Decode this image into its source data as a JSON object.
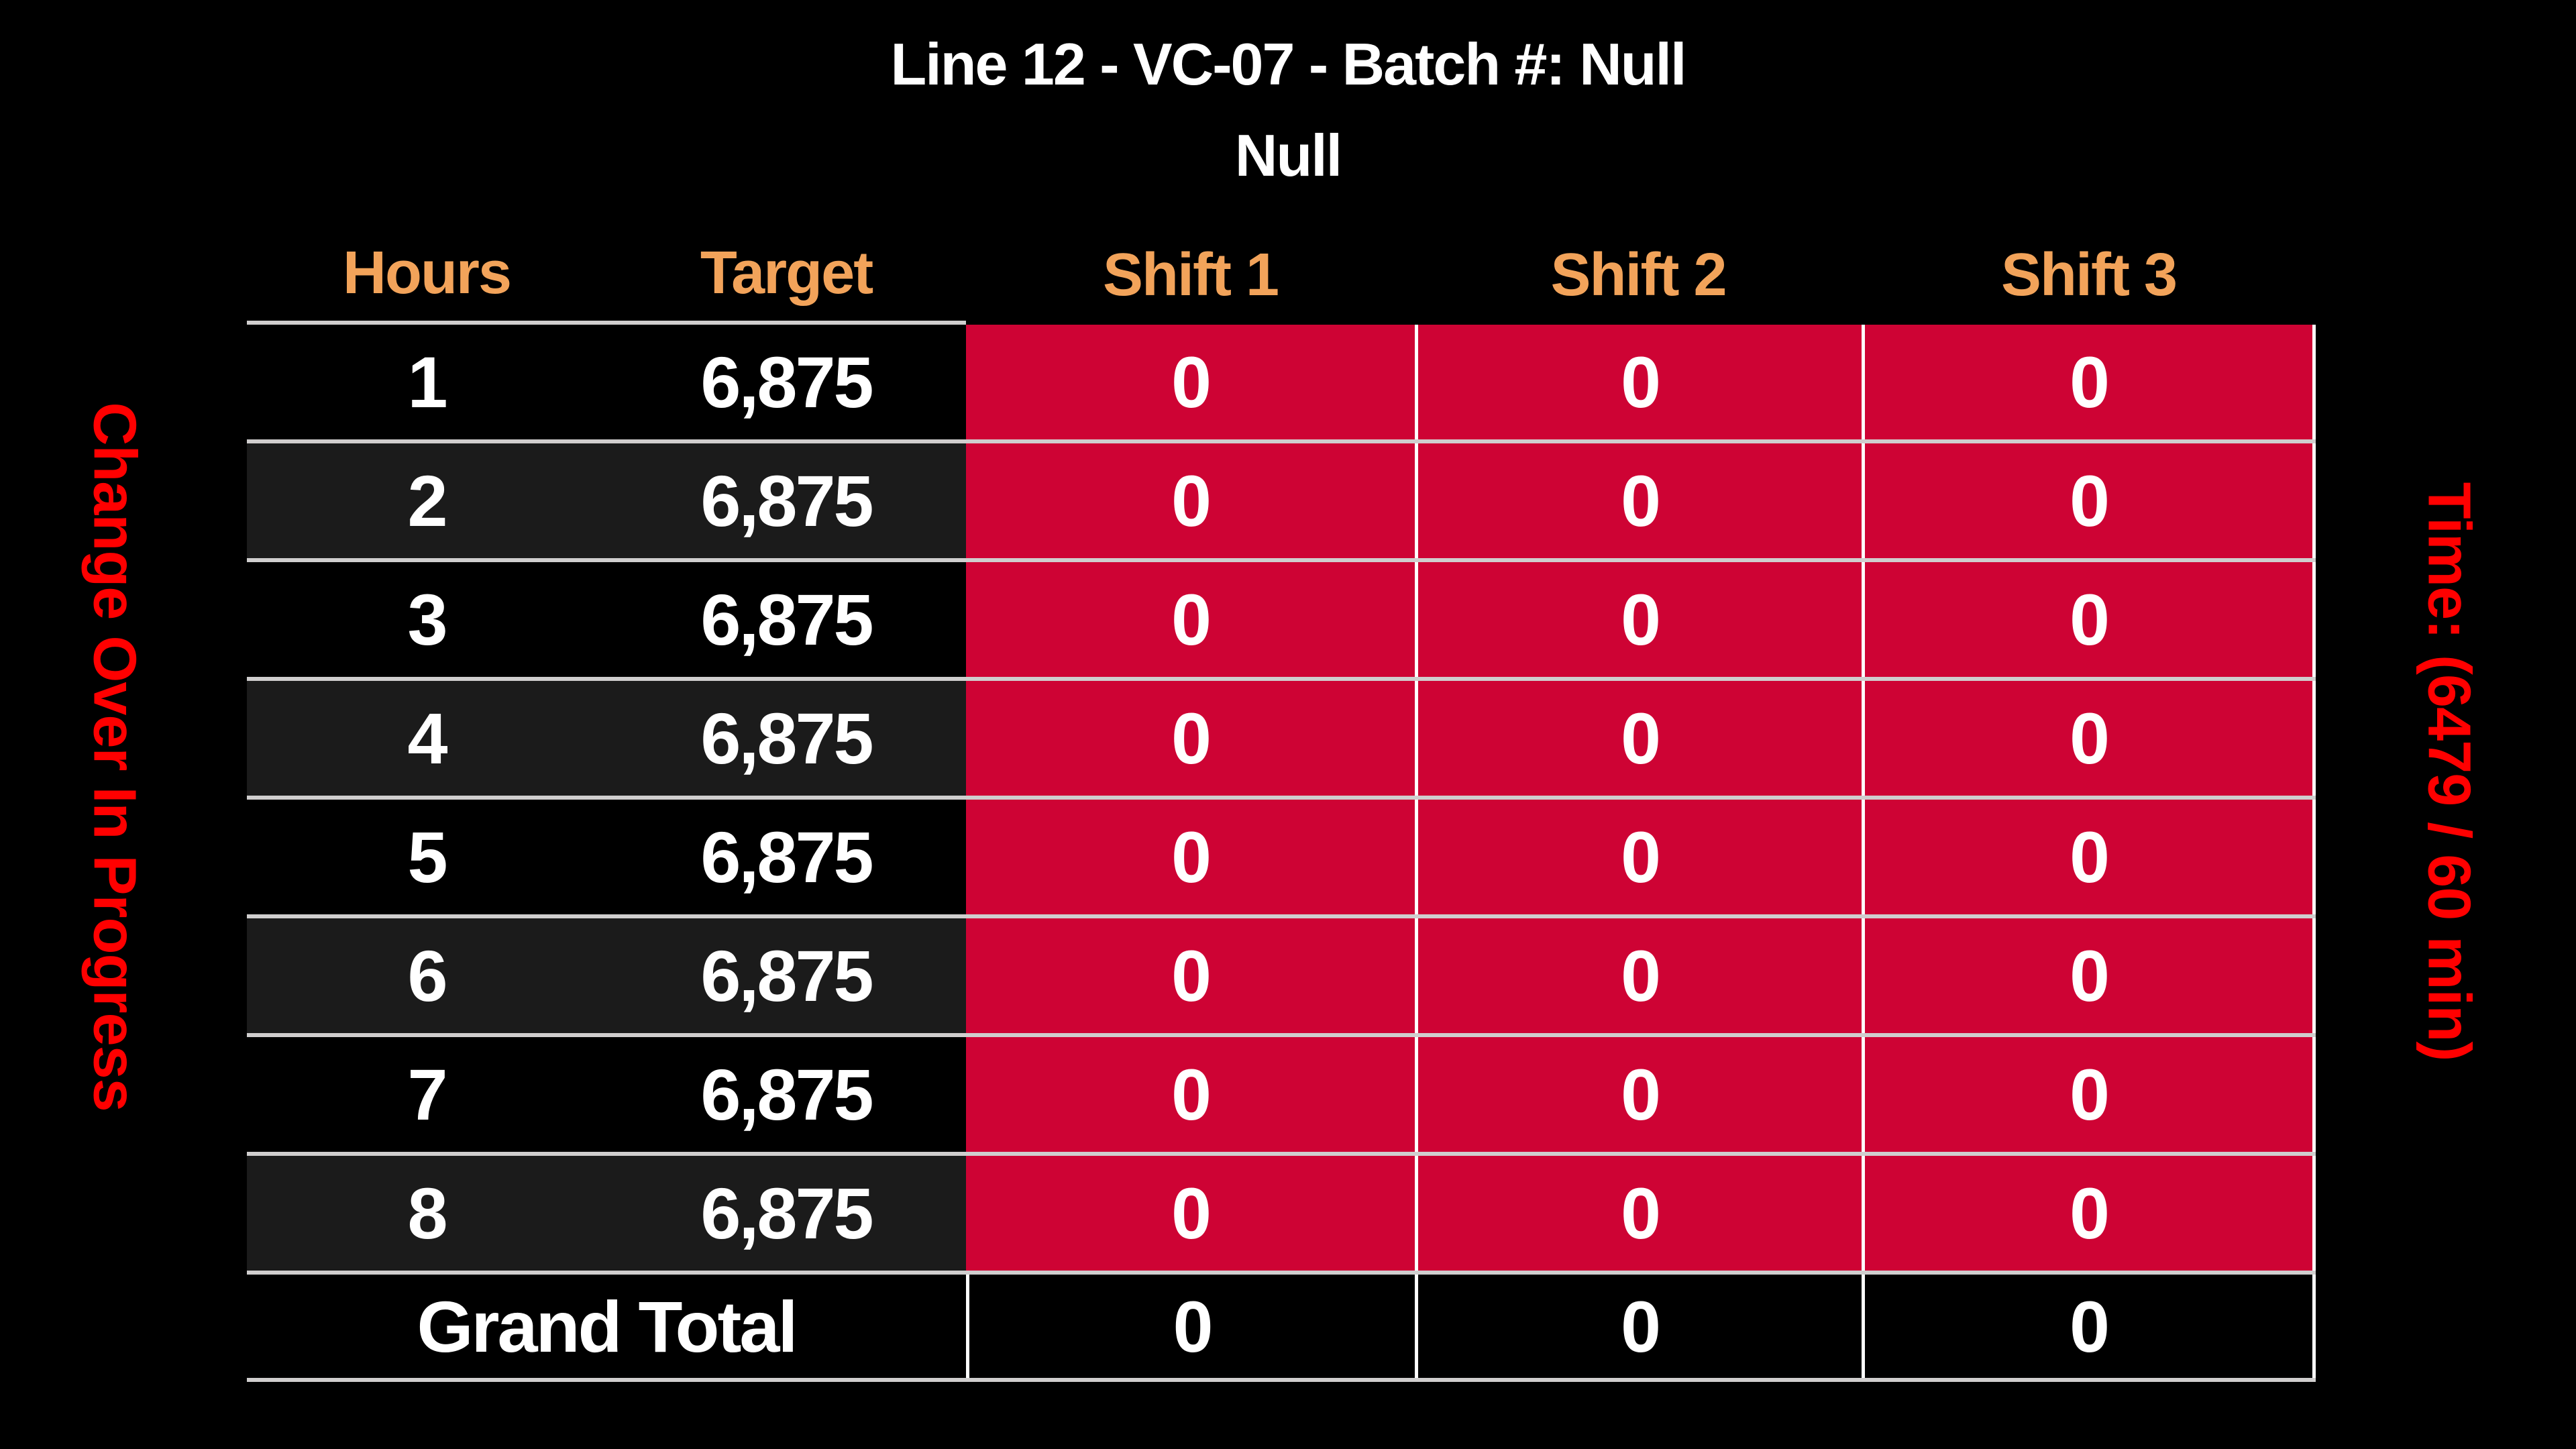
{
  "title": {
    "line1": "Line 12 - VC-07 - Batch #: Null",
    "line2": "Null"
  },
  "side_labels": {
    "left": "Change Over In Progress",
    "right": "Time: (6479 / 60 min)"
  },
  "table": {
    "headers": [
      "Hours",
      "Target",
      "Shift 1",
      "Shift 2",
      "Shift 3"
    ],
    "rows": [
      {
        "hours": "1",
        "target": "6,875",
        "shift1": "0",
        "shift2": "0",
        "shift3": "0"
      },
      {
        "hours": "2",
        "target": "6,875",
        "shift1": "0",
        "shift2": "0",
        "shift3": "0"
      },
      {
        "hours": "3",
        "target": "6,875",
        "shift1": "0",
        "shift2": "0",
        "shift3": "0"
      },
      {
        "hours": "4",
        "target": "6,875",
        "shift1": "0",
        "shift2": "0",
        "shift3": "0"
      },
      {
        "hours": "5",
        "target": "6,875",
        "shift1": "0",
        "shift2": "0",
        "shift3": "0"
      },
      {
        "hours": "6",
        "target": "6,875",
        "shift1": "0",
        "shift2": "0",
        "shift3": "0"
      },
      {
        "hours": "7",
        "target": "6,875",
        "shift1": "0",
        "shift2": "0",
        "shift3": "0"
      },
      {
        "hours": "8",
        "target": "6,875",
        "shift1": "0",
        "shift2": "0",
        "shift3": "0"
      }
    ],
    "grand_total": {
      "label": "Grand Total",
      "shift1": "0",
      "shift2": "0",
      "shift3": "0"
    }
  },
  "colors": {
    "background": "#000000",
    "row_stripe": "#1b1b1b",
    "shift_cell_red": "#ce0334",
    "side_label_red": "#ff0000",
    "header_orange": "#f2a35a",
    "grid_line_gray": "#d0cece",
    "text_white": "#ffffff"
  }
}
